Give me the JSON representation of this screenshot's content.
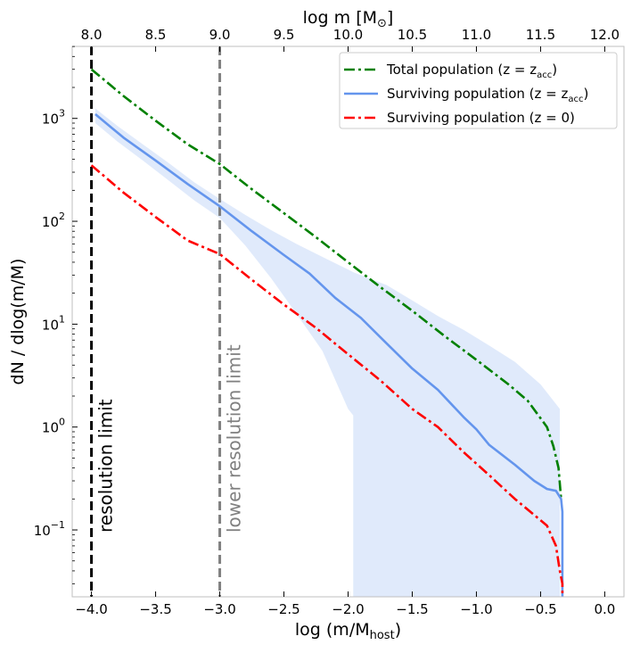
{
  "chart_data": {
    "type": "line",
    "xlabel": "log (m/M",
    "xlabel_sub": "host",
    "xlabel_close": ")",
    "ylabel": "dN / dlog(m/M)",
    "top_xlabel": "log m [M",
    "top_xlabel_sub": "⊙",
    "top_xlabel_close": "]",
    "xlim": [
      -4.15,
      0.15
    ],
    "ylim_log10": [
      -1.65,
      3.7
    ],
    "y_scale": "log",
    "grid": false,
    "legend_position": "upper-right",
    "x_ticks": [
      -4.0,
      -3.5,
      -3.0,
      -2.5,
      -2.0,
      -1.5,
      -1.0,
      -0.5,
      0.0
    ],
    "x_tick_labels": [
      "−4.0",
      "−3.5",
      "−3.0",
      "−2.5",
      "−2.0",
      "−1.5",
      "−1.0",
      "−0.5",
      "0.0"
    ],
    "top_x_ticks": [
      8.0,
      8.5,
      9.0,
      9.5,
      10.0,
      10.5,
      11.0,
      11.5,
      12.0
    ],
    "top_x_tick_labels": [
      "8.0",
      "8.5",
      "9.0",
      "9.5",
      "10.0",
      "10.5",
      "11.0",
      "11.5",
      "12.0"
    ],
    "top_axis_offset": 12.0,
    "y_ticks_log10": [
      -1,
      0,
      1,
      2,
      3
    ],
    "y_tick_mantissa": "10",
    "y_tick_exponents": [
      "−1",
      "0",
      "1",
      "2",
      "3"
    ],
    "vertical_lines": [
      {
        "x": -4.0,
        "color": "#000000",
        "style": "dashed",
        "label": "resolution limit"
      },
      {
        "x": -3.0,
        "color": "#808080",
        "style": "dashed",
        "label": "lower resolution limit"
      }
    ],
    "band": {
      "color": "#6495ED",
      "opacity": 0.2,
      "x": [
        -3.97,
        -3.8,
        -3.6,
        -3.4,
        -3.2,
        -3.0,
        -2.8,
        -2.6,
        -2.4,
        -2.2,
        -2.0,
        -1.96,
        -1.96,
        -1.7,
        -1.5,
        -1.3,
        -1.1,
        -0.9,
        -0.7,
        -0.5,
        -0.35,
        -0.35
      ],
      "upper": [
        1250,
        850,
        560,
        370,
        240,
        165,
        115,
        82,
        60,
        45,
        34,
        32,
        32,
        24,
        17,
        12,
        8.8,
        6.2,
        4.3,
        2.6,
        1.5,
        1.5
      ],
      "lower": [
        900,
        600,
        390,
        250,
        160,
        108,
        58,
        28,
        12.5,
        5.5,
        1.5,
        1.3,
        0.022,
        0.022,
        0.022,
        0.022,
        0.022,
        0.022,
        0.022,
        0.022,
        0.022,
        0.022
      ]
    },
    "series": [
      {
        "name": "Total population (z = z",
        "name_sub": "acc",
        "name_close": ")",
        "color": "#008000",
        "style": "dashdot",
        "x": [
          -4.0,
          -3.75,
          -3.5,
          -3.25,
          -3.0,
          -2.75,
          -2.5,
          -2.25,
          -2.0,
          -1.75,
          -1.5,
          -1.25,
          -1.0,
          -0.75,
          -0.6,
          -0.45,
          -0.4,
          -0.36,
          -0.34
        ],
        "y": [
          3000,
          1650,
          950,
          560,
          360,
          205,
          120,
          70,
          40,
          23,
          13.5,
          7.7,
          4.5,
          2.6,
          1.8,
          1.0,
          0.65,
          0.4,
          0.2
        ]
      },
      {
        "name": "Surviving population (z = z",
        "name_sub": "acc",
        "name_close": ")",
        "color": "#6495ED",
        "style": "solid",
        "x": [
          -3.97,
          -3.75,
          -3.5,
          -3.25,
          -3.0,
          -2.75,
          -2.5,
          -2.3,
          -2.1,
          -1.9,
          -1.7,
          -1.5,
          -1.3,
          -1.1,
          -1.0,
          -0.9,
          -0.7,
          -0.55,
          -0.45,
          -0.38,
          -0.34,
          -0.33,
          -0.33
        ],
        "y": [
          1100,
          650,
          390,
          230,
          140,
          80,
          47,
          31,
          18,
          11.5,
          6.5,
          3.7,
          2.3,
          1.25,
          0.95,
          0.67,
          0.43,
          0.3,
          0.25,
          0.24,
          0.2,
          0.15,
          0.022
        ]
      },
      {
        "name": "Surviving population (z = 0)",
        "name_sub": "",
        "name_close": "",
        "color": "#FF0000",
        "style": "dashdot",
        "x": [
          -4.0,
          -3.75,
          -3.5,
          -3.25,
          -3.0,
          -2.75,
          -2.5,
          -2.25,
          -2.0,
          -1.75,
          -1.5,
          -1.3,
          -1.1,
          -0.9,
          -0.7,
          -0.55,
          -0.45,
          -0.38,
          -0.35,
          -0.33,
          -0.33
        ],
        "y": [
          350,
          190,
          110,
          65,
          48,
          27,
          15.5,
          9.2,
          5.1,
          2.85,
          1.5,
          1.0,
          0.57,
          0.34,
          0.2,
          0.14,
          0.11,
          0.07,
          0.04,
          0.03,
          0.022
        ]
      }
    ]
  }
}
